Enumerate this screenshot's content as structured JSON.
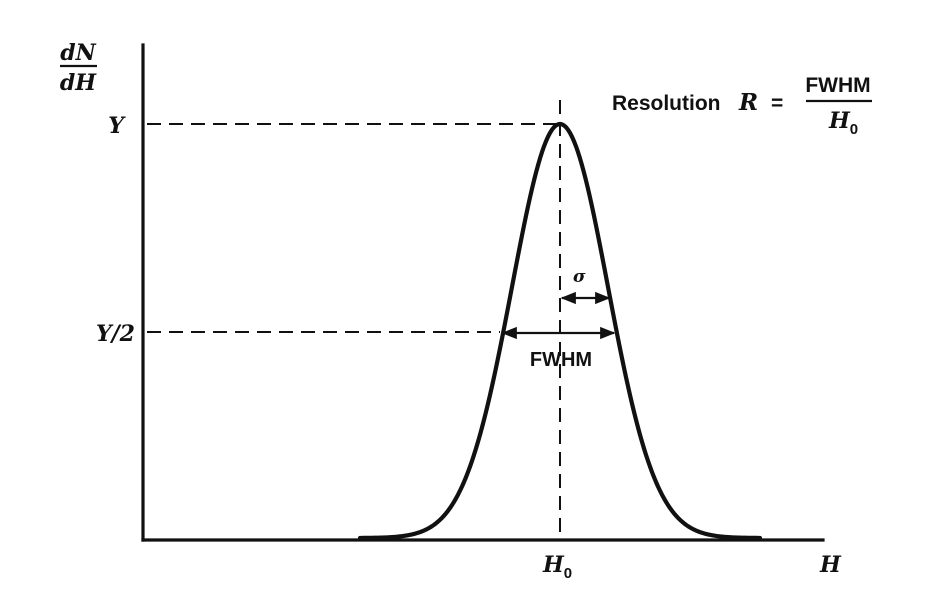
{
  "axes": {
    "y_label_numerator": "dN",
    "y_label_denominator": "dH",
    "x_label": "H"
  },
  "levels": {
    "peak": "Y",
    "half": "Y/2"
  },
  "peak_position_label": "H",
  "peak_position_subscript": "0",
  "sigma_label": "σ",
  "fwhm_label": "FWHM",
  "formula": {
    "prefix": "Resolution",
    "symbol": "R",
    "equals": "=",
    "numerator": "FWHM",
    "denominator_base": "H",
    "denominator_subscript": "0"
  }
}
